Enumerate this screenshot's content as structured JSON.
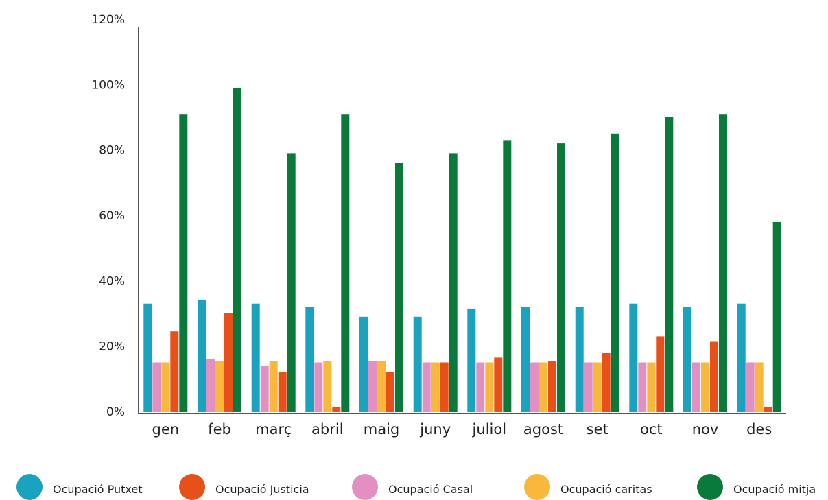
{
  "chart_data": {
    "type": "bar",
    "title": "",
    "xlabel": "",
    "ylabel": "",
    "categories": [
      "gen",
      "feb",
      "març",
      "abril",
      "maig",
      "juny",
      "juliol",
      "agost",
      "set",
      "oct",
      "nov",
      "des"
    ],
    "ylim": [
      0,
      120
    ],
    "y_ticks": [
      0,
      20,
      40,
      60,
      80,
      100,
      120
    ],
    "y_tick_labels": [
      "0%",
      "20%",
      "40%",
      "60%",
      "80%",
      "100%",
      "120%"
    ],
    "bar_order": [
      "Ocupació Putxet",
      "Ocupació Casal",
      "Ocupació caritas",
      "Ocupació Justicia",
      "Ocupació mitja"
    ],
    "series": [
      {
        "name": "Ocupació Putxet",
        "color": "#1aa3bf",
        "values": [
          33,
          34,
          33,
          32,
          29,
          29,
          31.5,
          32,
          32,
          33,
          32,
          33
        ]
      },
      {
        "name": "Ocupació Justicia",
        "color": "#e8501a",
        "values": [
          24.5,
          30,
          12,
          1.5,
          12,
          15,
          16.5,
          15.5,
          18,
          23,
          21.5,
          1.5
        ]
      },
      {
        "name": "Ocupació Casal",
        "color": "#e290c2",
        "values": [
          15,
          16,
          14,
          15,
          15.5,
          15,
          15,
          15,
          15,
          15,
          15,
          15
        ]
      },
      {
        "name": "Ocupació caritas",
        "color": "#f7b83c",
        "values": [
          15,
          15.5,
          15.5,
          15.5,
          15.5,
          15,
          15,
          15,
          15,
          15,
          15,
          15
        ]
      },
      {
        "name": "Ocupació mitja",
        "color": "#0a7a3a",
        "values": [
          91,
          99,
          79,
          91,
          76,
          79,
          83,
          82,
          85,
          90,
          91,
          58
        ]
      }
    ],
    "legend": {
      "position": "bottom",
      "items": [
        "Ocupació Putxet",
        "Ocupació Justicia",
        "Ocupació Casal",
        "Ocupació caritas",
        "Ocupació mitja"
      ]
    },
    "grid": false
  }
}
